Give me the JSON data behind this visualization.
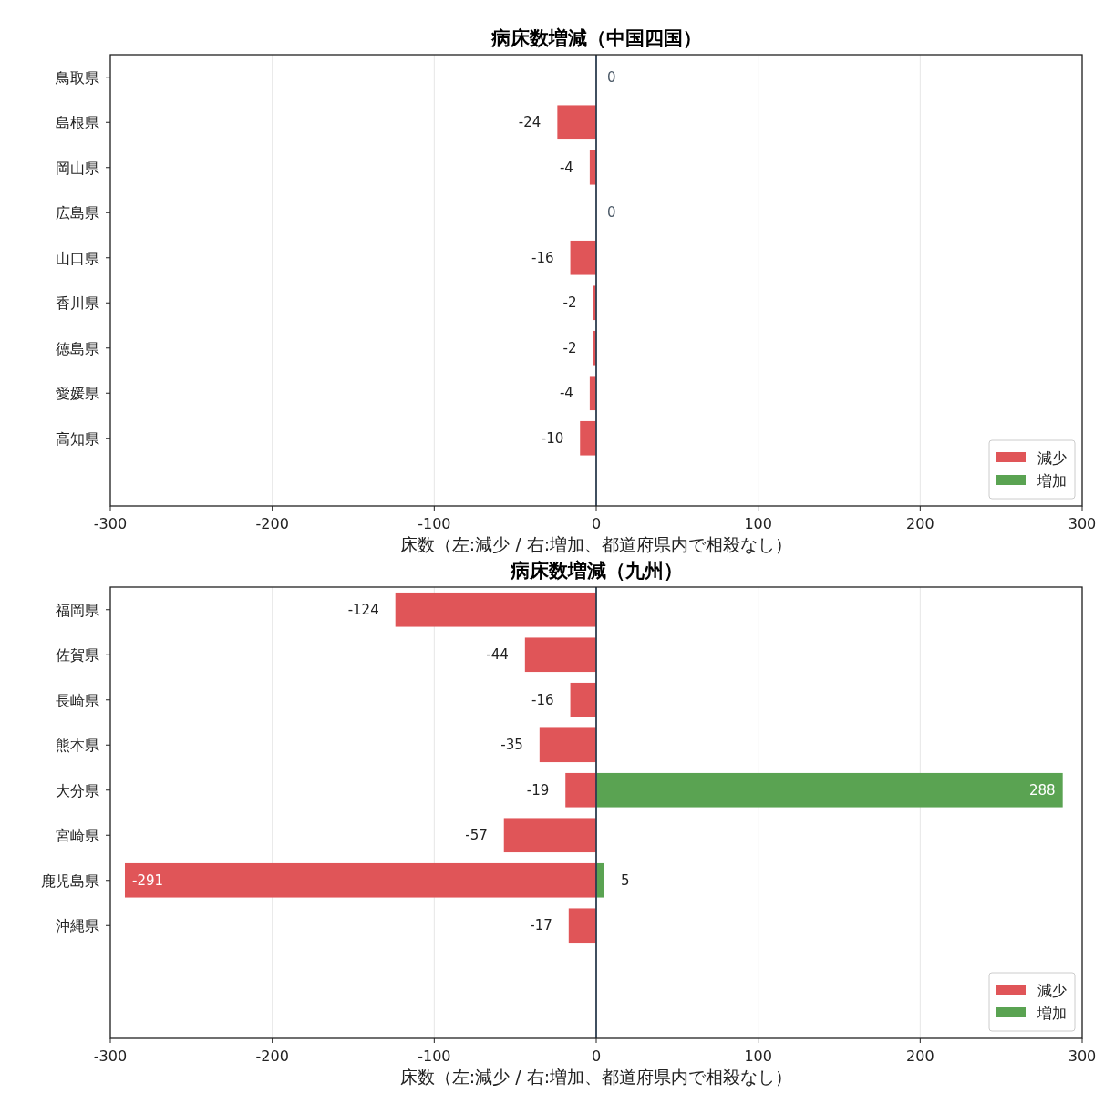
{
  "chart_data": [
    {
      "type": "bar",
      "orientation": "horizontal",
      "title": "病床数増減（中国四国）",
      "xlabel": "床数（左:減少 / 右:増加、都道府県内で相殺なし）",
      "categories": [
        "鳥取県",
        "島根県",
        "岡山県",
        "広島県",
        "山口県",
        "香川県",
        "徳島県",
        "愛媛県",
        "高知県"
      ],
      "series": [
        {
          "name": "減少",
          "color": "#e05558",
          "values": [
            0,
            -24,
            -4,
            0,
            -16,
            -2,
            -2,
            -4,
            -10
          ]
        },
        {
          "name": "増加",
          "color": "#5aa352",
          "values": [
            null,
            null,
            null,
            null,
            null,
            null,
            null,
            null,
            null
          ]
        }
      ],
      "data_labels": true,
      "xlim": [
        -300,
        300
      ],
      "xticks": [
        -300,
        -200,
        -100,
        0,
        100,
        200,
        300
      ],
      "grid": "x",
      "legend": "bottom right",
      "ref_lines": [
        {
          "axis": "x",
          "value": 0,
          "color": "#2d3e50"
        }
      ]
    },
    {
      "type": "bar",
      "orientation": "horizontal",
      "title": "病床数増減（九州）",
      "xlabel": "床数（左:減少 / 右:増加、都道府県内で相殺なし）",
      "categories": [
        "福岡県",
        "佐賀県",
        "長崎県",
        "熊本県",
        "大分県",
        "宮崎県",
        "鹿児島県",
        "沖縄県"
      ],
      "series": [
        {
          "name": "減少",
          "color": "#e05558",
          "values": [
            -124,
            -44,
            -16,
            -35,
            -19,
            -57,
            -291,
            -17
          ]
        },
        {
          "name": "増加",
          "color": "#5aa352",
          "values": [
            null,
            null,
            null,
            null,
            288,
            null,
            5,
            null
          ]
        }
      ],
      "data_labels": true,
      "xlim": [
        -300,
        300
      ],
      "xticks": [
        -300,
        -200,
        -100,
        0,
        100,
        200,
        300
      ],
      "grid": "x",
      "legend": "bottom right",
      "ref_lines": [
        {
          "axis": "x",
          "value": 0,
          "color": "#2d3e50"
        }
      ]
    }
  ]
}
